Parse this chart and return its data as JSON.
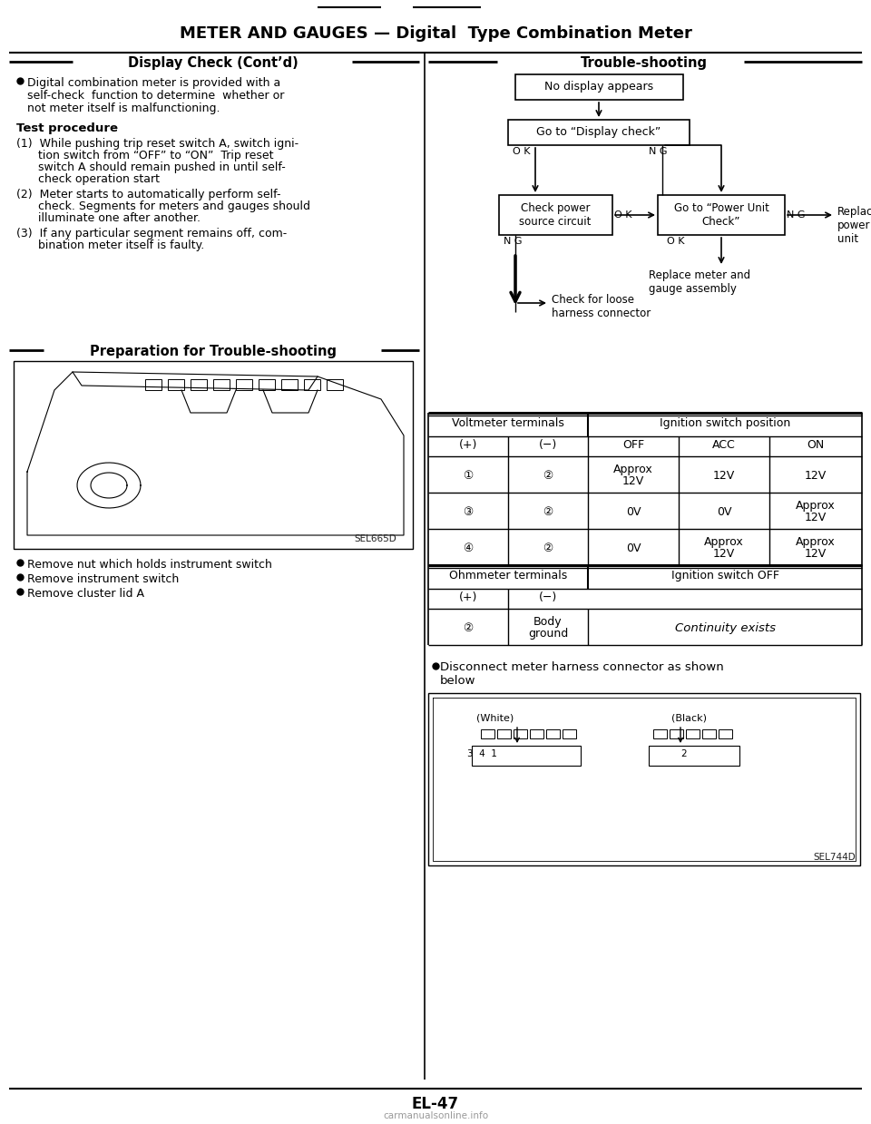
{
  "title": "METER AND GAUGES — Digital  Type Combination Meter",
  "left_header": "Display Check (Cont’d)",
  "right_header": "Trouble-shooting",
  "prep_header": "Preparation for Trouble-shooting",
  "bullet1_lines": [
    "Digital combination meter is provided with a",
    "self-check  function to determine  whether or",
    "not meter itself is malfunctioning."
  ],
  "test_proc": "Test procedure",
  "step1_lines": [
    "(1)  While pushing trip reset switch A, switch igni-",
    "      tion switch from “OFF” to “ON”  Trip reset",
    "      switch A should remain pushed in until self-",
    "      check operation start"
  ],
  "step2_lines": [
    "(2)  Meter starts to automatically perform self-",
    "      check. Segments for meters and gauges should",
    "      illuminate one after another."
  ],
  "step3_lines": [
    "(3)  If any particular segment remains off, com-",
    "      bination meter itself is faulty."
  ],
  "prep_bullets": [
    "Remove nut which holds instrument switch",
    "Remove instrument switch",
    "Remove cluster lid A"
  ],
  "box1": "No display appears",
  "box2": "Go to “Display check”",
  "box3": "Check power\nsource circuit",
  "box4": "Go to “Power Unit\nCheck”",
  "replace_text": "Replace\npower\nunit",
  "replace_meter": "Replace meter and\ngauge assembly",
  "check_harness": "Check for loose\nharness connector",
  "volt_h1": "Voltmeter terminals",
  "volt_h2": "Ignition switch position",
  "volt_cols": [
    "(+)",
    "(−)",
    "OFF",
    "ACC",
    "ON"
  ],
  "volt_rows": [
    [
      "①",
      "②",
      "Approx\n12V",
      "12V",
      "12V"
    ],
    [
      "③",
      "②",
      "0V",
      "0V",
      "Approx\n12V"
    ],
    [
      "④",
      "②",
      "0V",
      "Approx\n12V",
      "Approx\n12V"
    ]
  ],
  "ohm_h1": "Ohmmeter terminals",
  "ohm_h2": "Ignition switch OFF",
  "ohm_cols": [
    "(+)",
    "(−)"
  ],
  "ohm_rows": [
    [
      "②",
      "Body\nground",
      "Continuity exists"
    ]
  ],
  "disconnect": "Disconnect meter harness connector as shown\nbelow",
  "img1_label": "SEL665D",
  "img2_label": "SEL744D",
  "page_num": "EL-47",
  "watermark": "carmanualsonline.info"
}
